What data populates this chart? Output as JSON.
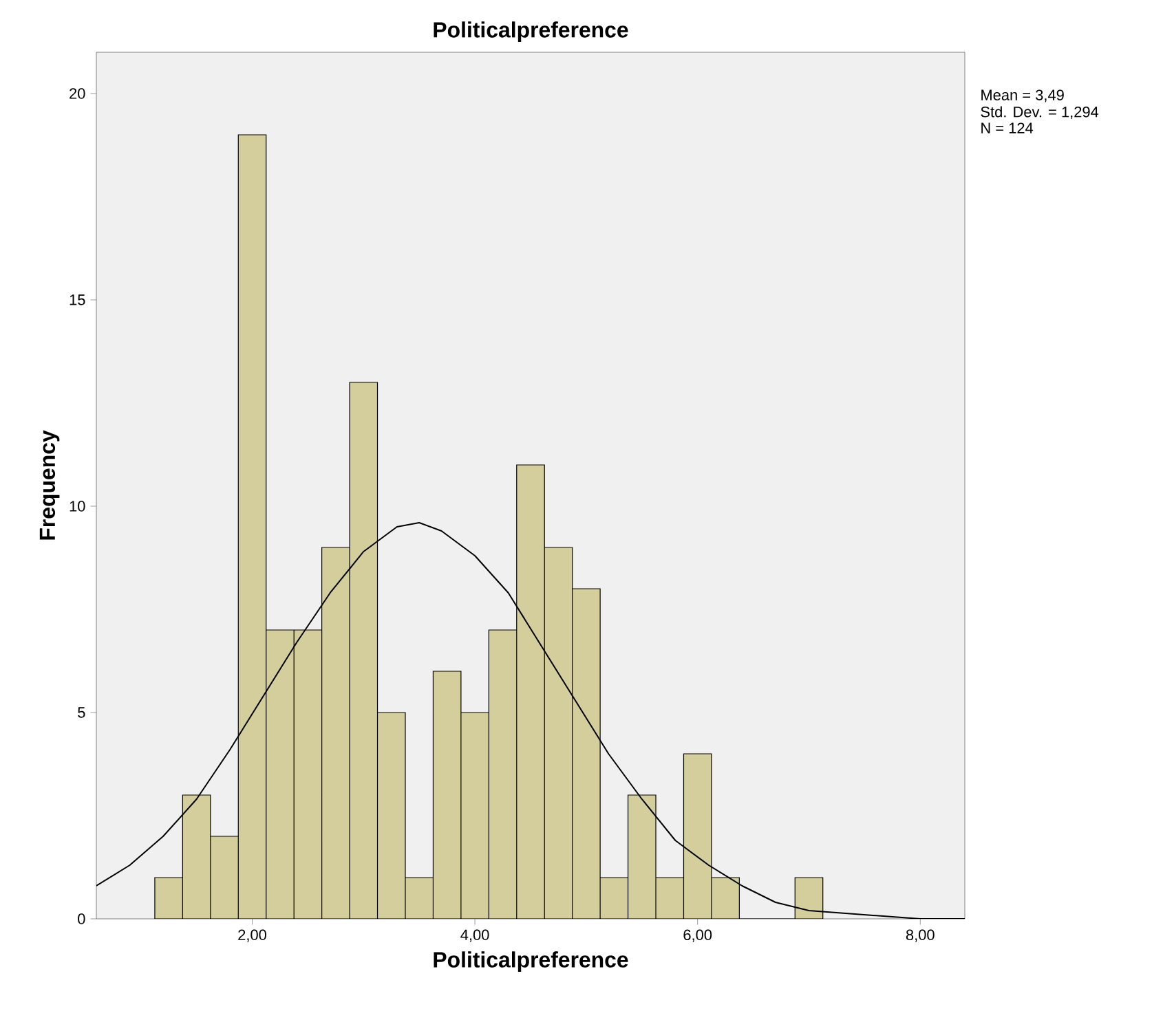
{
  "chart_data": {
    "type": "histogram",
    "title": "Politicalpreference",
    "xlabel": "Politicalpreference",
    "ylabel": "Frequency",
    "bins": [
      1.125,
      1.375,
      1.625,
      1.875,
      2.125,
      2.375,
      2.625,
      2.875,
      3.125,
      3.375,
      3.625,
      3.875,
      4.125,
      4.375,
      4.625,
      4.875,
      5.125,
      5.375,
      5.625,
      5.875,
      6.125,
      6.375,
      6.625,
      6.875,
      7.125
    ],
    "values": [
      1,
      3,
      2,
      19,
      7,
      7,
      9,
      13,
      5,
      1,
      6,
      5,
      7,
      11,
      9,
      8,
      1,
      3,
      1,
      4,
      1,
      0,
      0,
      1
    ],
    "color": "#d4cd9c",
    "series": [
      {
        "type": "line",
        "color": "#000000",
        "x": [
          0.6,
          0.9,
          1.2,
          1.5,
          1.8,
          2.1,
          2.4,
          2.7,
          3.0,
          3.3,
          3.5,
          3.7,
          4.0,
          4.3,
          4.6,
          4.9,
          5.2,
          5.5,
          5.8,
          6.1,
          6.4,
          6.7,
          7.0,
          7.5,
          8.0,
          8.4
        ],
        "values": [
          0.8,
          1.3,
          2.0,
          2.9,
          4.1,
          5.4,
          6.7,
          7.9,
          8.9,
          9.5,
          9.6,
          9.4,
          8.8,
          7.9,
          6.6,
          5.3,
          4.0,
          2.9,
          1.9,
          1.3,
          0.8,
          0.4,
          0.2,
          0.1,
          0.0,
          0.0
        ]
      }
    ],
    "xlim": [
      0.6,
      8.4
    ],
    "ylim": [
      0,
      21
    ],
    "xticks": [
      {
        "value": 2,
        "label": "2,00"
      },
      {
        "value": 4,
        "label": "4,00"
      },
      {
        "value": 6,
        "label": "6,00"
      },
      {
        "value": 8,
        "label": "8,00"
      }
    ],
    "yticks": [
      0,
      5,
      10,
      15,
      20
    ],
    "annotations": [
      "Mean = 3,49",
      "Std. Dev. = 1,294",
      "N = 124"
    ],
    "grid": false
  }
}
